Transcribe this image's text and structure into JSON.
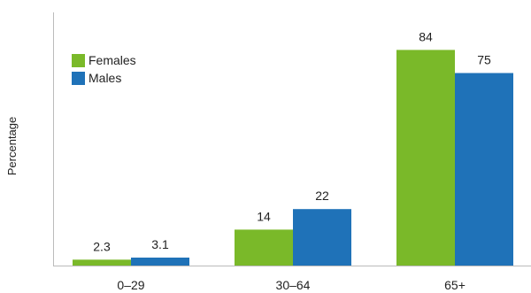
{
  "chart_data": {
    "type": "bar",
    "title": "",
    "xlabel": "",
    "ylabel": "Percentage",
    "categories": [
      "0–29",
      "30–64",
      "65+"
    ],
    "series": [
      {
        "name": "Females",
        "color": "#7ab929",
        "values": [
          2.3,
          14,
          84
        ],
        "labels": [
          "2.3",
          "14",
          "84"
        ]
      },
      {
        "name": "Males",
        "color": "#1f72b8",
        "values": [
          3.1,
          22,
          75
        ],
        "labels": [
          "3.1",
          "22",
          "75"
        ]
      }
    ],
    "ylim": [
      0,
      100
    ],
    "grid": false,
    "legend_position": "top-left"
  }
}
